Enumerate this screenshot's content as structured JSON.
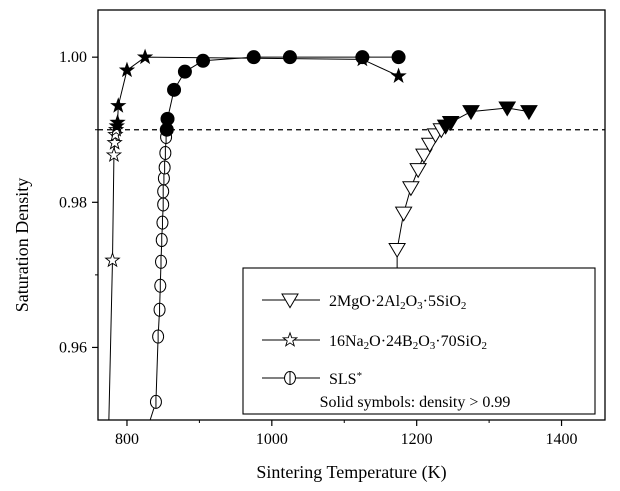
{
  "chart_data": {
    "type": "scatter",
    "xlabel": "Sintering Temperature (K)",
    "ylabel": "Saturation Density",
    "xlim": [
      760,
      1460
    ],
    "ylim": [
      0.95,
      1.0065
    ],
    "xticks": [
      800,
      1000,
      1200,
      1400
    ],
    "yticks": [
      0.96,
      0.98,
      1.0
    ],
    "xtick_labels": [
      "800",
      "1000",
      "1200",
      "1400"
    ],
    "ytick_labels": [
      "0.96",
      "0.98",
      "1.00"
    ],
    "reference_line": {
      "y": 0.99,
      "style": "dashed"
    },
    "legend": {
      "position": "bottom-right",
      "note": "Solid symbols: density > 0.99",
      "entries": [
        {
          "label_parts": [
            [
              "2MgO·2Al",
              ""
            ],
            [
              "2",
              "sub"
            ],
            [
              "O",
              ""
            ],
            [
              "3",
              "sub"
            ],
            [
              "·5SiO",
              ""
            ],
            [
              "2",
              "sub"
            ]
          ],
          "marker": "triangle-down"
        },
        {
          "label_parts": [
            [
              "16Na",
              ""
            ],
            [
              "2",
              "sub"
            ],
            [
              "O·24B",
              ""
            ],
            [
              "2",
              "sub"
            ],
            [
              "O",
              ""
            ],
            [
              "3",
              "sub"
            ],
            [
              "·70SiO",
              ""
            ],
            [
              "2",
              "sub"
            ]
          ],
          "marker": "star"
        },
        {
          "label_parts": [
            [
              "SLS",
              ""
            ],
            [
              "*",
              "sup"
            ]
          ],
          "marker": "circle-bar"
        }
      ]
    },
    "series": [
      {
        "marker": "triangle-down",
        "points": [
          [
            1173,
            0.9735,
            0
          ],
          [
            1182,
            0.9785,
            0
          ],
          [
            1192,
            0.982,
            0
          ],
          [
            1202,
            0.9845,
            0
          ],
          [
            1210,
            0.9865,
            0
          ],
          [
            1218,
            0.988,
            0
          ],
          [
            1226,
            0.9893,
            0
          ],
          [
            1234,
            0.99,
            0
          ],
          [
            1240,
            0.9905,
            1
          ],
          [
            1247,
            0.991,
            1
          ],
          [
            1275,
            0.9925,
            1
          ],
          [
            1325,
            0.993,
            1
          ],
          [
            1355,
            0.9925,
            1
          ]
        ],
        "line_from": [
          1173,
          0.9735
        ],
        "line_start_y": 0.969
      },
      {
        "marker": "star",
        "points": [
          [
            780,
            0.972,
            0
          ],
          [
            782,
            0.9865,
            0
          ],
          [
            783,
            0.9882,
            0
          ],
          [
            784,
            0.9893,
            0
          ],
          [
            785,
            0.99,
            0
          ],
          [
            786,
            0.9905,
            1
          ],
          [
            787,
            0.991,
            1
          ],
          [
            788,
            0.9933,
            1
          ],
          [
            800,
            0.9982,
            1
          ],
          [
            825,
            1.0,
            1
          ],
          [
            1125,
            0.9997,
            1
          ],
          [
            1175,
            0.9974,
            1
          ]
        ],
        "line_start": [
          775,
          0.95
        ]
      },
      {
        "marker": "circle-bar",
        "points": [
          [
            840,
            0.9525,
            0
          ],
          [
            843,
            0.9615,
            0
          ],
          [
            845,
            0.9652,
            0
          ],
          [
            846,
            0.9685,
            0
          ],
          [
            847,
            0.9718,
            0
          ],
          [
            848,
            0.9748,
            0
          ],
          [
            849,
            0.9772,
            0
          ],
          [
            850,
            0.9797,
            0
          ],
          [
            850,
            0.9815,
            0
          ],
          [
            851,
            0.9833,
            0
          ],
          [
            852,
            0.9848,
            0
          ],
          [
            853,
            0.9868,
            0
          ],
          [
            854,
            0.989,
            0
          ],
          [
            855,
            0.99,
            1
          ],
          [
            856,
            0.9915,
            1
          ],
          [
            865,
            0.9955,
            1
          ],
          [
            880,
            0.998,
            1
          ],
          [
            905,
            0.9995,
            1
          ],
          [
            975,
            1.0,
            1
          ],
          [
            1025,
            1.0,
            1
          ],
          [
            1125,
            1.0,
            1
          ],
          [
            1175,
            1.0,
            1
          ]
        ],
        "line_start": [
          832,
          0.95
        ]
      }
    ]
  }
}
